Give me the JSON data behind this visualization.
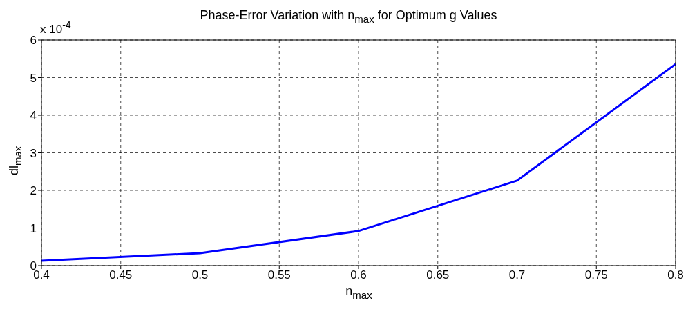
{
  "chart_data": {
    "type": "line",
    "title": "Phase-Error Variation with n$_{max}$ for Optimum g Values",
    "xlabel": "n$_{max}$",
    "ylabel": "dl$_{max}$",
    "annotations": [
      "x 10$^{-4}$"
    ],
    "x": [
      0.4,
      0.5,
      0.6,
      0.7,
      0.8
    ],
    "series": [
      {
        "color": "#0000ff",
        "values": [
          0.13,
          0.33,
          0.92,
          2.26,
          5.36
        ]
      }
    ],
    "xlim": [
      0.4,
      0.8
    ],
    "xticks": [
      0.4,
      0.45,
      0.5,
      0.55,
      0.6,
      0.65,
      0.7,
      0.75,
      0.8
    ],
    "ylim": [
      0,
      6
    ],
    "yticks": [
      0,
      1,
      2,
      3,
      4,
      5,
      6
    ],
    "grid": true,
    "marker": "none",
    "line_style": "solid",
    "legend": false
  }
}
